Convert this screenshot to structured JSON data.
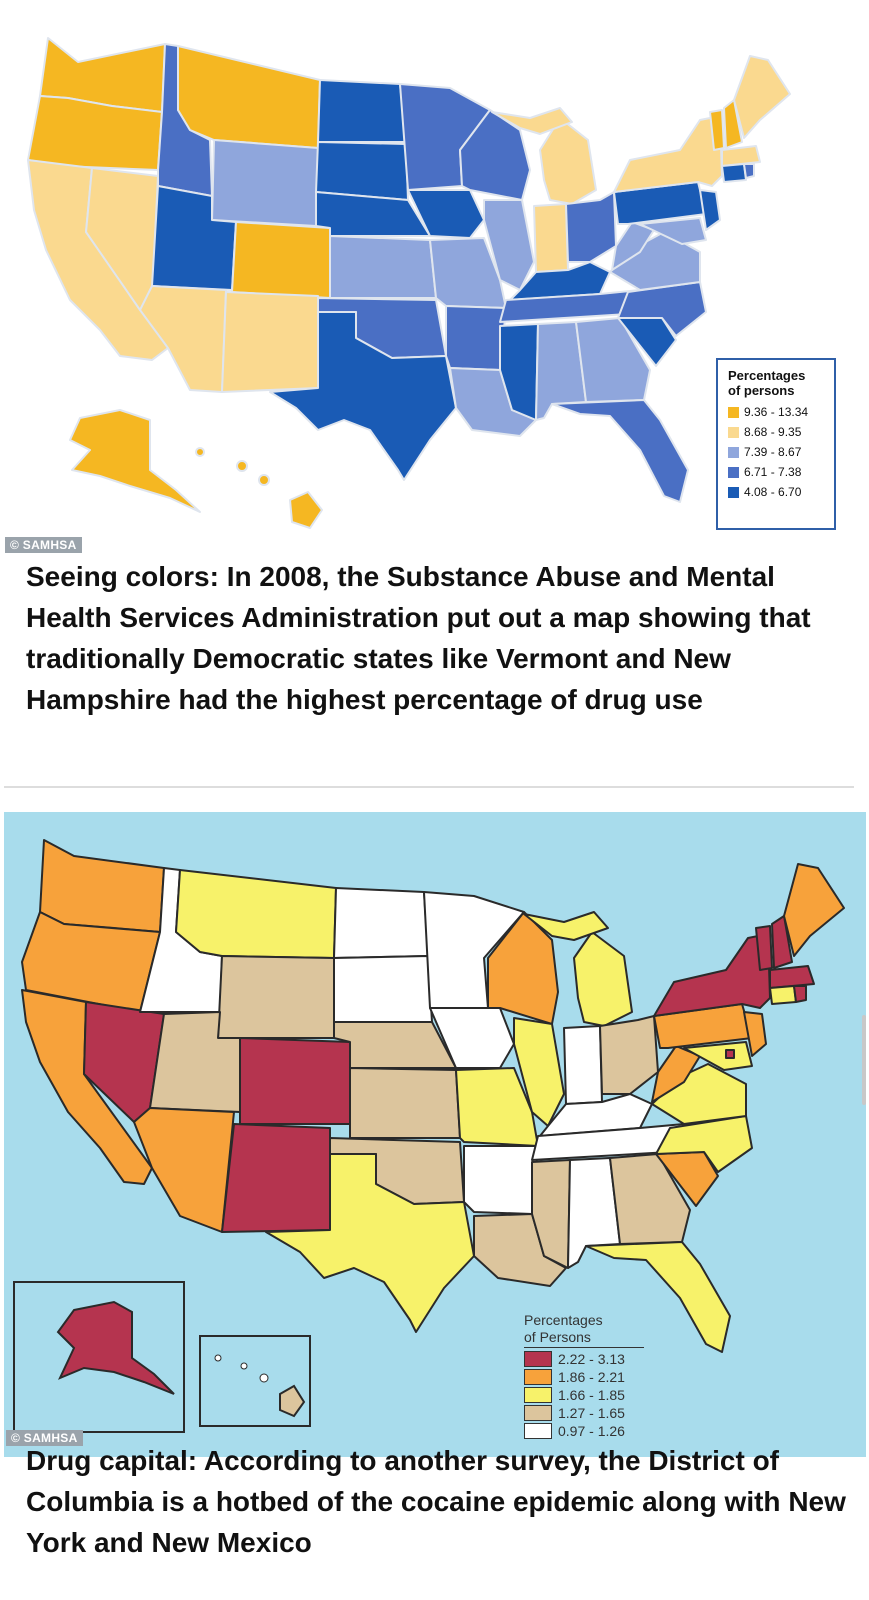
{
  "map1": {
    "credit": "© SAMHSA",
    "legend_title_line1": "Percentages",
    "legend_title_line2": "of persons",
    "legend": [
      {
        "label": "9.36 - 13.34",
        "color": "#f5b722"
      },
      {
        "label": "8.68 - 9.35",
        "color": "#fad98f"
      },
      {
        "label": "7.39 - 8.67",
        "color": "#8fa6dc"
      },
      {
        "label": "6.71 - 7.38",
        "color": "#4a6fc4"
      },
      {
        "label": "4.08 - 6.70",
        "color": "#1a5bb5"
      }
    ]
  },
  "caption1": "Seeing colors: In 2008, the Substance Abuse and Mental Health Services Administration put out a map showing that traditionally Democratic states like Vermont and New Hampshire had the highest percentage of drug use",
  "map2": {
    "credit": "© SAMHSA",
    "legend_title_line1": "Percentages",
    "legend_title_line2": "of Persons",
    "legend": [
      {
        "label": "2.22 - 3.13",
        "color": "#b5344f"
      },
      {
        "label": "1.86 - 2.21",
        "color": "#f7a23b"
      },
      {
        "label": "1.66 - 1.85",
        "color": "#f7f26a"
      },
      {
        "label": "1.27 - 1.65",
        "color": "#dcc59d"
      },
      {
        "label": "0.97 - 1.26",
        "color": "#ffffff"
      }
    ]
  },
  "caption2": "Drug capital: According to another survey, the District of Columbia is a hotbed of the cocaine epidemic along with New York and New Mexico"
}
